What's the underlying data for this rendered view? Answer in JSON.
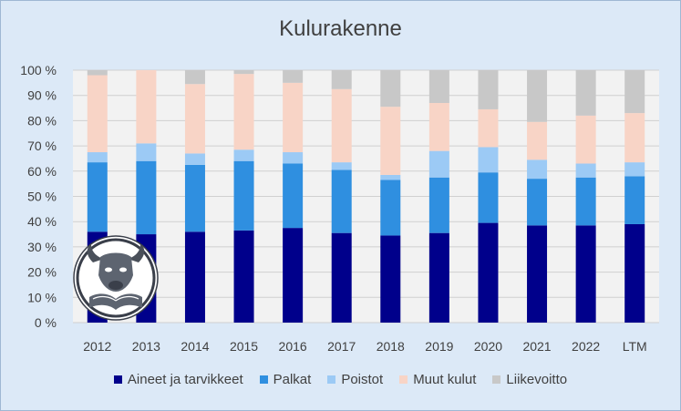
{
  "chart_data": {
    "type": "bar",
    "stacked": true,
    "title": "Kulurakenne",
    "categories": [
      "2012",
      "2013",
      "2014",
      "2015",
      "2016",
      "2017",
      "2018",
      "2019",
      "2020",
      "2021",
      "2022",
      "LTM"
    ],
    "ylim": [
      0,
      100
    ],
    "yticks": [
      "0 %",
      "10 %",
      "20 %",
      "30 %",
      "40 %",
      "50 %",
      "60 %",
      "70 %",
      "80 %",
      "90 %",
      "100 %"
    ],
    "grid": true,
    "legend_position": "bottom",
    "series": [
      {
        "name": "Aineet ja tarvikkeet",
        "color": "#00008b",
        "values": [
          36,
          35,
          36,
          36.5,
          37.5,
          35.5,
          34.5,
          35.5,
          39.5,
          38.5,
          38.5,
          39
        ]
      },
      {
        "name": "Palkat",
        "color": "#2f8fe0",
        "values": [
          27.5,
          29,
          26.5,
          27.5,
          25.5,
          25,
          22,
          22,
          20,
          18.5,
          19,
          19
        ]
      },
      {
        "name": "Poistot",
        "color": "#9ccaf5",
        "values": [
          4,
          7,
          4.5,
          4.5,
          4.5,
          3,
          2,
          10.5,
          10,
          7.5,
          5.5,
          5.5
        ]
      },
      {
        "name": "Muut kulut",
        "color": "#f8d4c6",
        "values": [
          30.5,
          29,
          27.5,
          30,
          27.5,
          29,
          27,
          19,
          15,
          15,
          19,
          19.5
        ]
      },
      {
        "name": "Liikevoitto",
        "color": "#c8c8c8",
        "values": [
          2,
          0,
          5.5,
          1.5,
          5,
          7.5,
          14.5,
          13,
          15.5,
          20.5,
          18,
          17
        ]
      }
    ]
  }
}
